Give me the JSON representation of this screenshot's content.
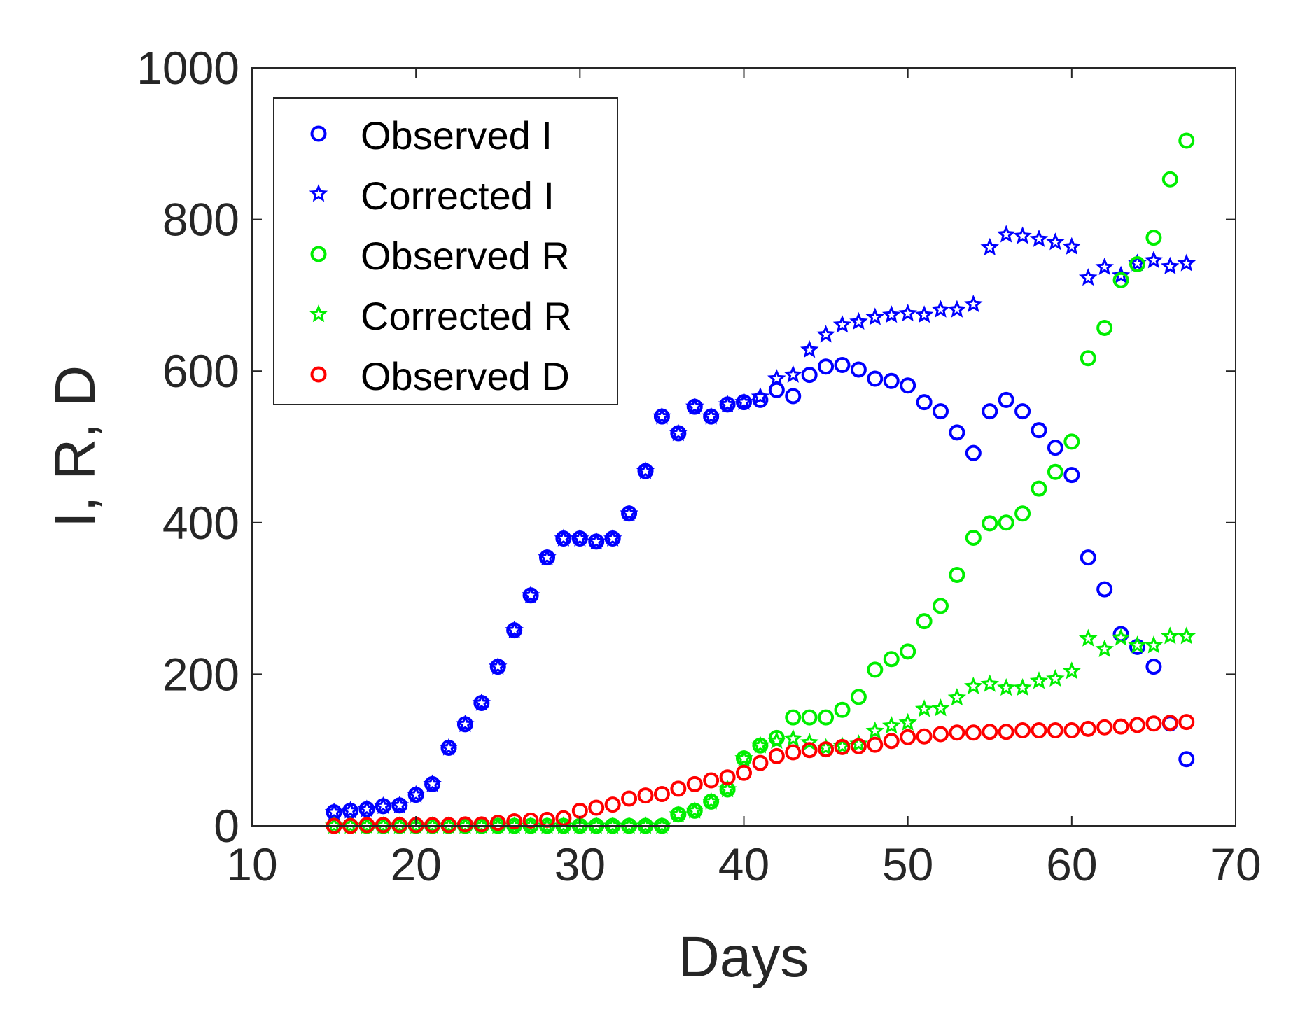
{
  "chart_data": {
    "type": "scatter",
    "title": "",
    "xlabel": "Days",
    "ylabel": "I, R, D",
    "xlim": [
      10,
      70
    ],
    "ylim": [
      0,
      1000
    ],
    "xticks": [
      "10",
      "20",
      "30",
      "40",
      "50",
      "60",
      "70"
    ],
    "yticks": [
      "0",
      "200",
      "400",
      "600",
      "800",
      "1000"
    ],
    "legend_position": "top-left",
    "grid": false,
    "series": [
      {
        "name": "Observed I",
        "marker": "circle",
        "color": "#0000ff",
        "x": [
          15,
          16,
          17,
          18,
          19,
          20,
          21,
          22,
          23,
          24,
          25,
          26,
          27,
          28,
          29,
          30,
          31,
          32,
          33,
          34,
          35,
          36,
          37,
          38,
          39,
          40,
          41,
          42,
          43,
          44,
          45,
          46,
          47,
          48,
          49,
          50,
          51,
          52,
          53,
          54,
          55,
          56,
          57,
          58,
          59,
          60,
          61,
          62,
          63,
          64,
          65,
          66,
          67
        ],
        "y": [
          18,
          20,
          22,
          26,
          27,
          41,
          55,
          103,
          134,
          162,
          210,
          258,
          304,
          354,
          379,
          379,
          375,
          379,
          412,
          468,
          540,
          518,
          553,
          540,
          556,
          559,
          562,
          575,
          567,
          595,
          606,
          608,
          602,
          590,
          587,
          581,
          559,
          547,
          519,
          492,
          547,
          562,
          547,
          522,
          499,
          463,
          354,
          312,
          253,
          236,
          210,
          135,
          88
        ]
      },
      {
        "name": "Corrected I",
        "marker": "star",
        "color": "#0000ff",
        "x": [
          15,
          16,
          17,
          18,
          19,
          20,
          21,
          22,
          23,
          24,
          25,
          26,
          27,
          28,
          29,
          30,
          31,
          32,
          33,
          34,
          35,
          36,
          37,
          38,
          39,
          40,
          41,
          42,
          43,
          44,
          45,
          46,
          47,
          48,
          49,
          50,
          51,
          52,
          53,
          54,
          55,
          56,
          57,
          58,
          59,
          60,
          61,
          62,
          63,
          64,
          65,
          66,
          67
        ],
        "y": [
          18,
          20,
          22,
          26,
          27,
          41,
          55,
          103,
          134,
          162,
          210,
          258,
          304,
          354,
          379,
          379,
          375,
          379,
          412,
          468,
          540,
          518,
          553,
          540,
          556,
          559,
          566,
          590,
          595,
          628,
          648,
          661,
          665,
          671,
          674,
          676,
          674,
          681,
          681,
          688,
          763,
          780,
          778,
          774,
          770,
          764,
          723,
          737,
          726,
          742,
          746,
          738,
          742
        ]
      },
      {
        "name": "Observed R",
        "marker": "circle",
        "color": "#00ee00",
        "x": [
          15,
          16,
          17,
          18,
          19,
          20,
          21,
          22,
          23,
          24,
          25,
          26,
          27,
          28,
          29,
          30,
          31,
          32,
          33,
          34,
          35,
          36,
          37,
          38,
          39,
          40,
          41,
          42,
          43,
          44,
          45,
          46,
          47,
          48,
          49,
          50,
          51,
          52,
          53,
          54,
          55,
          56,
          57,
          58,
          59,
          60,
          61,
          62,
          63,
          64,
          65,
          66,
          67
        ],
        "y": [
          0,
          0,
          0,
          0,
          0,
          0,
          0,
          0,
          0,
          0,
          0,
          0,
          0,
          0,
          0,
          0,
          0,
          0,
          0,
          0,
          0,
          15,
          20,
          32,
          48,
          89,
          106,
          116,
          143,
          143,
          143,
          153,
          170,
          206,
          220,
          230,
          270,
          290,
          331,
          380,
          399,
          400,
          412,
          445,
          467,
          507,
          617,
          657,
          720,
          741,
          776,
          853,
          904
        ]
      },
      {
        "name": "Corrected R",
        "marker": "star",
        "color": "#00ee00",
        "x": [
          15,
          16,
          17,
          18,
          19,
          20,
          21,
          22,
          23,
          24,
          25,
          26,
          27,
          28,
          29,
          30,
          31,
          32,
          33,
          34,
          35,
          36,
          37,
          38,
          39,
          40,
          41,
          42,
          43,
          44,
          45,
          46,
          47,
          48,
          49,
          50,
          51,
          52,
          53,
          54,
          55,
          56,
          57,
          58,
          59,
          60,
          61,
          62,
          63,
          64,
          65,
          66,
          67
        ],
        "y": [
          0,
          0,
          0,
          0,
          0,
          0,
          0,
          0,
          0,
          0,
          0,
          0,
          0,
          0,
          0,
          0,
          0,
          0,
          0,
          0,
          0,
          15,
          20,
          32,
          48,
          89,
          106,
          112,
          115,
          110,
          103,
          105,
          108,
          125,
          132,
          136,
          154,
          155,
          169,
          184,
          187,
          182,
          182,
          191,
          194,
          204,
          247,
          233,
          248,
          238,
          238,
          250,
          250
        ]
      },
      {
        "name": "Observed D",
        "marker": "circle",
        "color": "#ff0000",
        "x": [
          15,
          16,
          17,
          18,
          19,
          20,
          21,
          22,
          23,
          24,
          25,
          26,
          27,
          28,
          29,
          30,
          31,
          32,
          33,
          34,
          35,
          36,
          37,
          38,
          39,
          40,
          41,
          42,
          43,
          44,
          45,
          46,
          47,
          48,
          49,
          50,
          51,
          52,
          53,
          54,
          55,
          56,
          57,
          58,
          59,
          60,
          61,
          62,
          63,
          64,
          65,
          66,
          67
        ],
        "y": [
          0,
          0,
          1,
          1,
          1,
          1,
          1,
          1,
          2,
          2,
          4,
          6,
          7,
          8,
          10,
          20,
          24,
          28,
          36,
          40,
          42,
          49,
          55,
          60,
          64,
          70,
          83,
          92,
          97,
          100,
          101,
          104,
          105,
          107,
          112,
          117,
          118,
          121,
          123,
          123,
          124,
          124,
          126,
          126,
          126,
          126,
          128,
          130,
          131,
          133,
          135,
          136,
          137
        ]
      }
    ]
  }
}
